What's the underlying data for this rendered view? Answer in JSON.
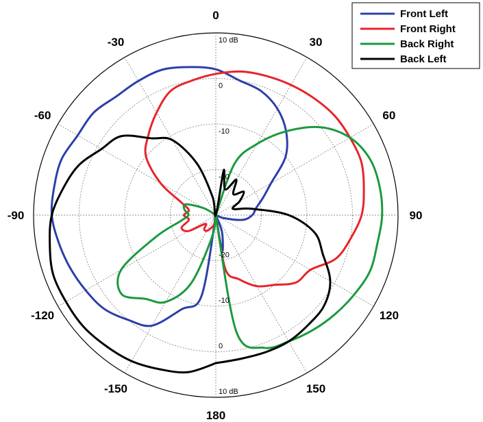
{
  "chart_data": {
    "type": "polar",
    "theta_direction": "clockwise",
    "theta_zero": "top",
    "angle_ticks": [
      0,
      30,
      60,
      90,
      120,
      150,
      180,
      -150,
      -120,
      -90,
      -60,
      -30
    ],
    "angle_tick_labels": [
      "0",
      "30",
      "60",
      "90",
      "120",
      "150",
      "180",
      "-150",
      "-120",
      "-90",
      "-60",
      "-30"
    ],
    "r_min": -30,
    "r_max": 10,
    "r_rings": [
      -30,
      -20,
      -10,
      0,
      10
    ],
    "r_ring_labels_top": [
      "",
      "-20",
      "-10",
      "0",
      "10 dB"
    ],
    "r_ring_labels_bottom": [
      "",
      "-20",
      "-10",
      "0",
      "10 dB"
    ],
    "legend_position": "top-right",
    "grid": true,
    "series": [
      {
        "name": "Front Left",
        "color": "#2c3fa8",
        "points": [
          [
            -180,
            -30
          ],
          [
            -170,
            -12
          ],
          [
            -160,
            -8
          ],
          [
            -150,
            -2
          ],
          [
            -140,
            0
          ],
          [
            -130,
            2
          ],
          [
            -120,
            3
          ],
          [
            -110,
            4
          ],
          [
            -100,
            5
          ],
          [
            -90,
            6
          ],
          [
            -80,
            6
          ],
          [
            -70,
            6
          ],
          [
            -60,
            5
          ],
          [
            -50,
            5
          ],
          [
            -40,
            4
          ],
          [
            -30,
            4
          ],
          [
            -20,
            4
          ],
          [
            -10,
            3
          ],
          [
            0,
            2
          ],
          [
            10,
            0
          ],
          [
            20,
            -1
          ],
          [
            30,
            -3
          ],
          [
            40,
            -6
          ],
          [
            50,
            -10
          ],
          [
            60,
            -16
          ],
          [
            70,
            -19
          ],
          [
            80,
            -21
          ],
          [
            90,
            -22
          ],
          [
            100,
            -24
          ],
          [
            110,
            -28
          ],
          [
            120,
            -30
          ],
          [
            130,
            -30
          ],
          [
            140,
            -30
          ],
          [
            150,
            -30
          ],
          [
            160,
            -26
          ],
          [
            170,
            -22
          ],
          [
            180,
            -30
          ]
        ]
      },
      {
        "name": "Front Right",
        "color": "#e8242b",
        "points": [
          [
            -180,
            -30
          ],
          [
            -170,
            -28
          ],
          [
            -160,
            -27
          ],
          [
            -150,
            -26
          ],
          [
            -140,
            -26
          ],
          [
            -130,
            -27
          ],
          [
            -120,
            -23
          ],
          [
            -110,
            -22
          ],
          [
            -100,
            -24
          ],
          [
            -90,
            -23
          ],
          [
            -80,
            -24
          ],
          [
            -70,
            -22
          ],
          [
            -60,
            -16
          ],
          [
            -50,
            -10
          ],
          [
            -40,
            -7
          ],
          [
            -30,
            -4
          ],
          [
            -20,
            -1
          ],
          [
            -10,
            0
          ],
          [
            0,
            1
          ],
          [
            10,
            2
          ],
          [
            20,
            2.5
          ],
          [
            30,
            3
          ],
          [
            40,
            3.5
          ],
          [
            50,
            4
          ],
          [
            60,
            4
          ],
          [
            70,
            4
          ],
          [
            80,
            3
          ],
          [
            90,
            2
          ],
          [
            100,
            0
          ],
          [
            110,
            -2
          ],
          [
            120,
            -6
          ],
          [
            130,
            -7
          ],
          [
            140,
            -10
          ],
          [
            150,
            -12
          ],
          [
            160,
            -15
          ],
          [
            170,
            -18
          ],
          [
            180,
            -30
          ]
        ]
      },
      {
        "name": "Back Right",
        "color": "#1a9a3e",
        "points": [
          [
            -180,
            -30
          ],
          [
            -170,
            -25
          ],
          [
            -160,
            -14
          ],
          [
            -150,
            -8
          ],
          [
            -140,
            -6
          ],
          [
            -130,
            -3
          ],
          [
            -120,
            -6
          ],
          [
            -110,
            -16
          ],
          [
            -100,
            -22
          ],
          [
            -90,
            -24
          ],
          [
            -80,
            -23
          ],
          [
            -70,
            -23
          ],
          [
            -60,
            -27
          ],
          [
            -50,
            -30
          ],
          [
            0,
            -30
          ],
          [
            10,
            -30
          ],
          [
            20,
            -18
          ],
          [
            30,
            -12
          ],
          [
            40,
            -6
          ],
          [
            50,
            0
          ],
          [
            60,
            4
          ],
          [
            70,
            6
          ],
          [
            80,
            6.5
          ],
          [
            90,
            6.5
          ],
          [
            100,
            6
          ],
          [
            110,
            6
          ],
          [
            120,
            5
          ],
          [
            130,
            4
          ],
          [
            140,
            3
          ],
          [
            150,
            2
          ],
          [
            160,
            1
          ],
          [
            170,
            -4
          ],
          [
            180,
            -30
          ]
        ]
      },
      {
        "name": "Back Left",
        "color": "#000000",
        "points": [
          [
            -180,
            2.5
          ],
          [
            -170,
            5
          ],
          [
            -160,
            6
          ],
          [
            -150,
            7
          ],
          [
            -140,
            7.5
          ],
          [
            -130,
            8
          ],
          [
            -120,
            8
          ],
          [
            -110,
            8
          ],
          [
            -100,
            7
          ],
          [
            -90,
            6
          ],
          [
            -80,
            4
          ],
          [
            -70,
            2
          ],
          [
            -60,
            -1
          ],
          [
            -50,
            -3
          ],
          [
            -40,
            -8
          ],
          [
            -30,
            -11
          ],
          [
            -20,
            -18
          ],
          [
            -10,
            -26
          ],
          [
            0,
            -30
          ],
          [
            10,
            -20
          ],
          [
            20,
            -24
          ],
          [
            30,
            -21
          ],
          [
            40,
            -24
          ],
          [
            50,
            -22
          ],
          [
            60,
            -24
          ],
          [
            70,
            -26
          ],
          [
            80,
            -22
          ],
          [
            90,
            -14
          ],
          [
            100,
            -8
          ],
          [
            110,
            -5
          ],
          [
            120,
            -1
          ],
          [
            130,
            1
          ],
          [
            140,
            1.5
          ],
          [
            150,
            2
          ],
          [
            160,
            2
          ],
          [
            170,
            2
          ],
          [
            180,
            2.5
          ]
        ]
      }
    ]
  }
}
